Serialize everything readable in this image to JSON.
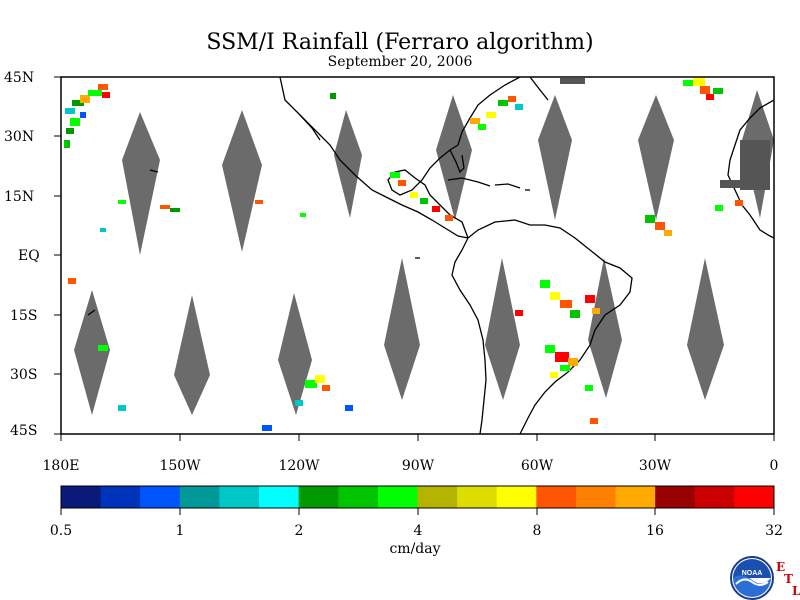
{
  "title": "SSM/I Rainfall (Ferraro algorithm)",
  "subtitle": "September 20, 2006",
  "lat_labels": [
    "45N",
    "30N",
    "15N",
    "EQ",
    "15S",
    "30S",
    "45S"
  ],
  "lon_labels": [
    "180E",
    "150W",
    "120W",
    "90W",
    "60W",
    "30W",
    "0"
  ],
  "colorbar": {
    "ticks": [
      "0.5",
      "1",
      "2",
      "4",
      "8",
      "16",
      "32"
    ],
    "units": "cm/day",
    "colors": [
      "#0a1a7a",
      "#0033bb",
      "#0055ff",
      "#00999a",
      "#00c8c8",
      "#00ffff",
      "#009900",
      "#00c400",
      "#00ff00",
      "#b3b300",
      "#dddd00",
      "#ffff00",
      "#ff5500",
      "#ff8000",
      "#ffaa00",
      "#990000",
      "#cc0000",
      "#ff0000"
    ]
  },
  "logo": {
    "text": "NOAA",
    "letters": [
      "E",
      "T",
      "L"
    ]
  },
  "chart_data": {
    "type": "heatmap",
    "title": "SSM/I Rainfall (Ferraro algorithm)",
    "subtitle": "September 20, 2006",
    "xlabel": "",
    "ylabel": "",
    "xlim": [
      -180,
      0
    ],
    "ylim": [
      -45,
      45
    ],
    "colorbar_scale": "log",
    "colorbar_range": [
      0.5,
      32
    ],
    "colorbar_units": "cm/day",
    "grid": false,
    "rain_clusters": [
      {
        "lon": -170,
        "lat": 37,
        "level": "moderate"
      },
      {
        "lon": -78,
        "lat": 30,
        "level": "moderate"
      },
      {
        "lon": -68,
        "lat": 38,
        "level": "moderate"
      },
      {
        "lon": -10,
        "lat": 43,
        "level": "heavy"
      },
      {
        "lon": -88,
        "lat": 12,
        "level": "moderate"
      },
      {
        "lon": -45,
        "lat": -17,
        "level": "heavy"
      },
      {
        "lon": -53,
        "lat": -23,
        "level": "heavy"
      },
      {
        "lon": -125,
        "lat": -32,
        "level": "moderate"
      },
      {
        "lon": -30,
        "lat": 6,
        "level": "moderate"
      }
    ]
  }
}
